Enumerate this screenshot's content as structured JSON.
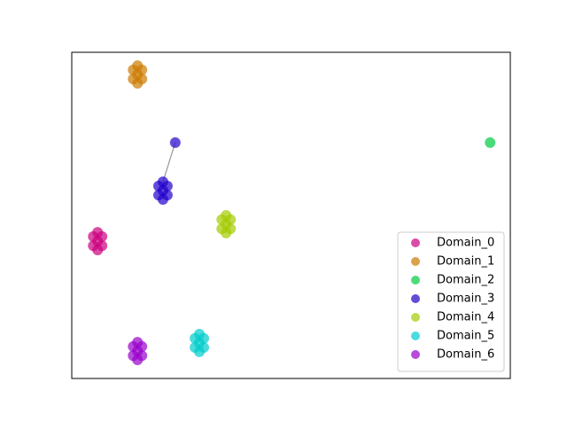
{
  "chart_data": {
    "type": "scatter",
    "xlim": [
      0,
      100
    ],
    "ylim": [
      0,
      100
    ],
    "legend": "lower right",
    "series": [
      {
        "name": "Domain_0",
        "color": "#cc0080",
        "x": [
          5.9,
          5.9,
          5.9,
          4.9,
          6.9,
          4.9,
          6.9
        ],
        "y": [
          42.1,
          44.8,
          39.4,
          43.5,
          43.5,
          40.7,
          40.7
        ]
      },
      {
        "name": "Domain_1",
        "color": "#cc7a00",
        "x": [
          15,
          15,
          15,
          14,
          16,
          14,
          16
        ],
        "y": [
          93.2,
          95.9,
          90.5,
          94.6,
          94.6,
          91.8,
          91.8
        ]
      },
      {
        "name": "Domain_2",
        "color": "#00cc44",
        "x": [
          95.4
        ],
        "y": [
          72.3
        ]
      },
      {
        "name": "Domain_3",
        "color": "#2200cc",
        "x": [
          23.6,
          20.8,
          20.8,
          20.8,
          19.8,
          21.8,
          19.8,
          21.8
        ],
        "y": [
          72.3,
          57.6,
          60.3,
          54.9,
          59.0,
          59.0,
          56.2,
          56.2
        ]
      },
      {
        "name": "Domain_4",
        "color": "#a3cc00",
        "x": [
          35.2,
          35.2,
          35.2,
          34.2,
          36.2,
          34.2,
          36.2
        ],
        "y": [
          47.3,
          50.0,
          44.6,
          48.7,
          48.7,
          45.9,
          45.9
        ]
      },
      {
        "name": "Domain_5",
        "color": "#00cccc",
        "x": [
          29.1,
          29.1,
          29.1,
          28.1,
          30.1,
          28.1,
          30.1
        ],
        "y": [
          10.9,
          13.6,
          8.2,
          12.3,
          12.3,
          9.5,
          9.5
        ]
      },
      {
        "name": "Domain_6",
        "color": "#9900cc",
        "x": [
          15,
          15,
          15,
          14,
          16,
          14,
          16
        ],
        "y": [
          8.4,
          11.1,
          5.7,
          9.8,
          9.8,
          7.0,
          7.0
        ]
      }
    ]
  }
}
